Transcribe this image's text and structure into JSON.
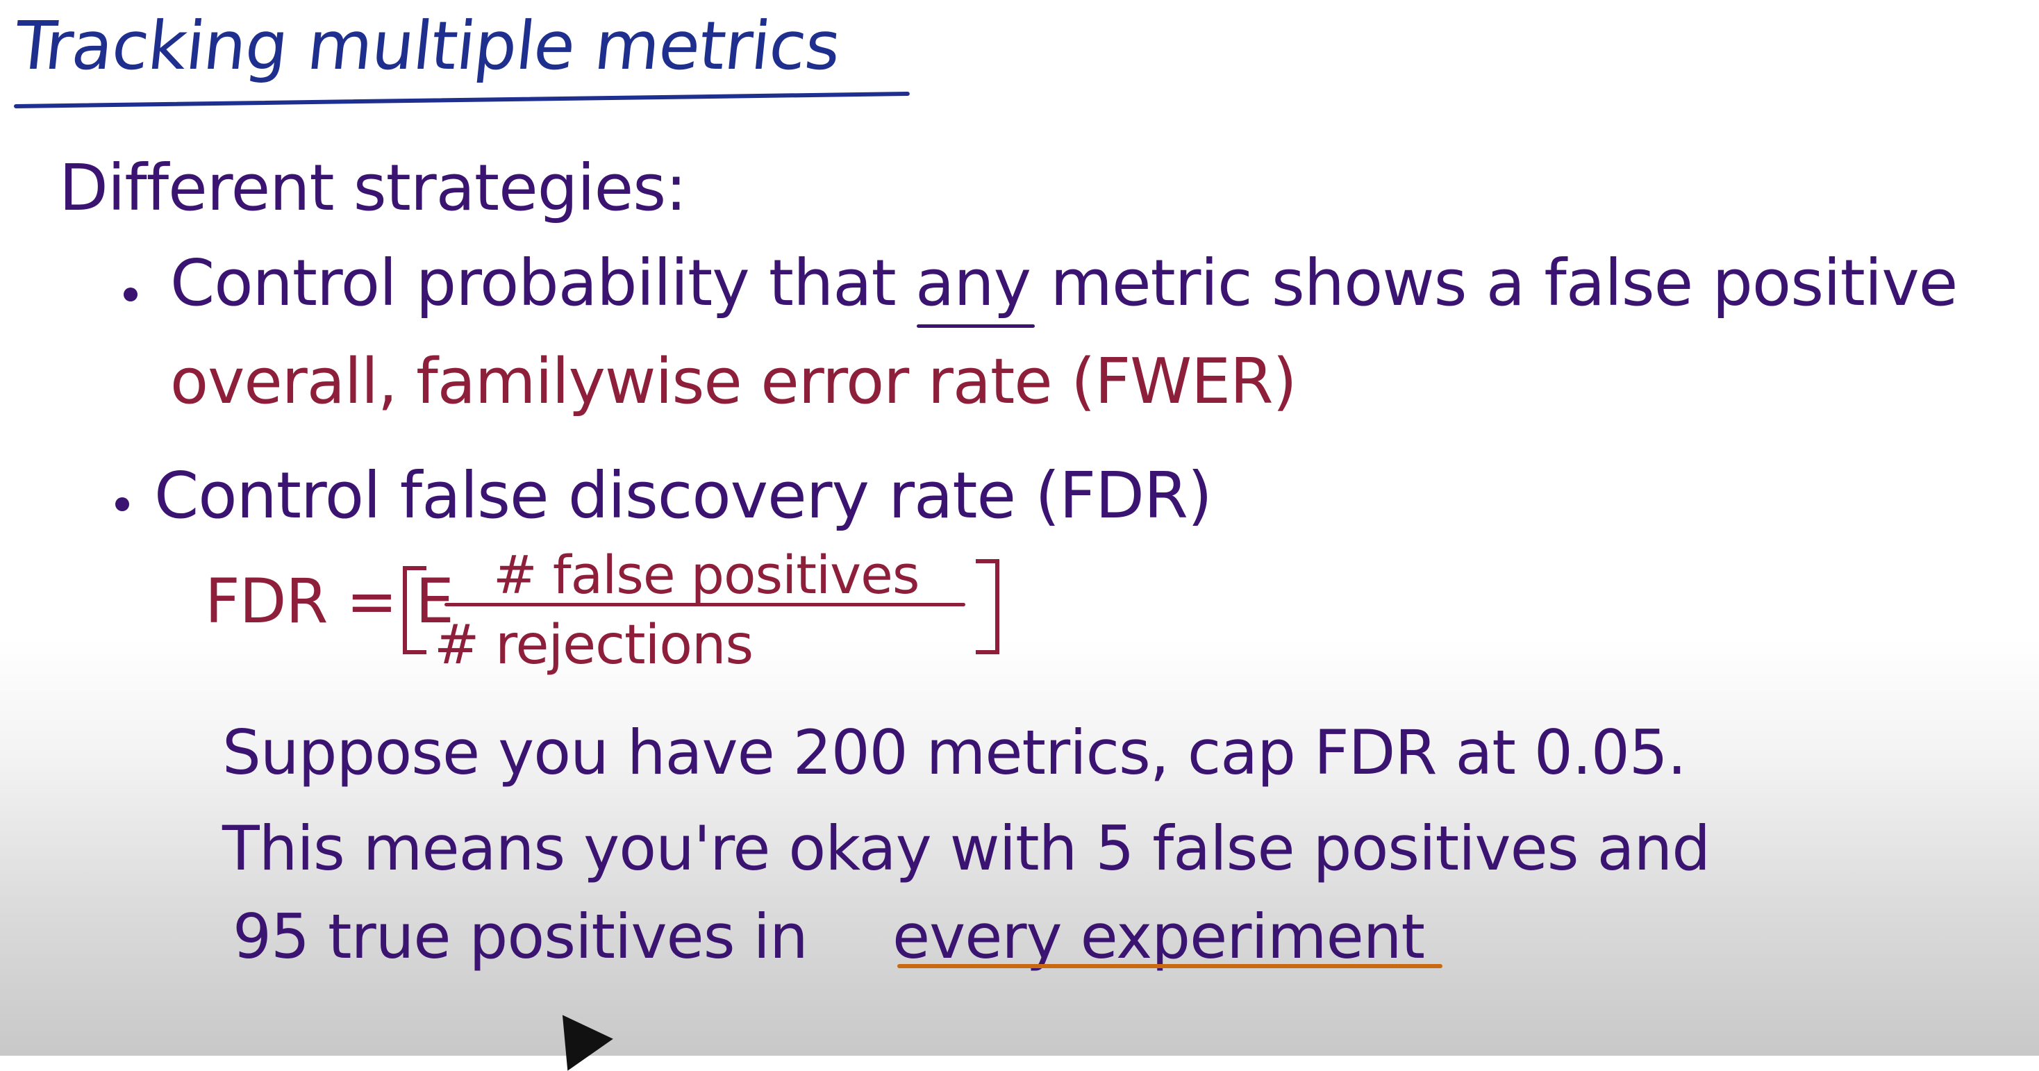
{
  "title": "Tracking multiple metrics",
  "subtitle": "Different strategies:",
  "strategies": [
    {
      "text": "Control probability that any metric shows a false positive",
      "note": "overall, familywise error rate (FWER)"
    },
    {
      "text": "Control false discovery rate (FDR)"
    }
  ],
  "formula": {
    "lhs": "FDR = E",
    "numerator": "# false positives",
    "denominator": "# rejections"
  },
  "example": {
    "line1": "Suppose you have 200 metrics, cap FDR at 0.05.",
    "line2": "This means you're okay with 5 false positives and",
    "line3_start": "95 true positives in",
    "line3_emphasis": "every experiment"
  },
  "colors": {
    "title": "#1f2f8e",
    "main_text": "#3a1470",
    "annotation": "#8e1f3b",
    "emphasis_underline": "#c96a12"
  },
  "icons": {
    "pen": "pen-cursor-icon"
  }
}
